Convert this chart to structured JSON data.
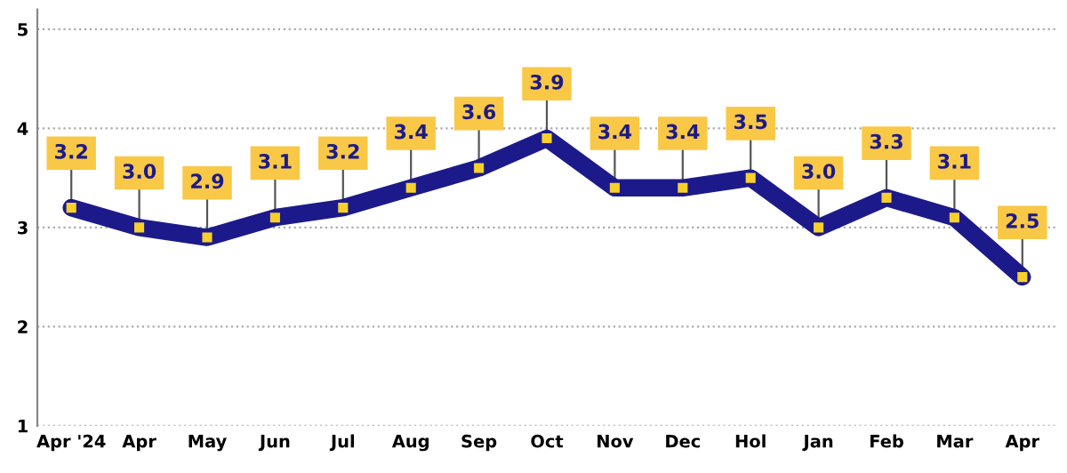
{
  "chart_data": {
    "type": "line",
    "categories": [
      "Apr '24",
      "Apr",
      "May",
      "Jun",
      "Jul",
      "Aug",
      "Sep",
      "Oct",
      "Nov",
      "Dec",
      "Hol",
      "Jan",
      "Feb",
      "Mar",
      "Apr"
    ],
    "series": [
      {
        "color": "#1c1a8a",
        "values": [
          3.2,
          3.0,
          2.9,
          3.1,
          3.2,
          3.4,
          3.6,
          3.9,
          3.4,
          3.4,
          3.5,
          3.0,
          3.3,
          3.1,
          2.5
        ],
        "value_labels": [
          "3.2",
          "3.0",
          "2.9",
          "3.1",
          "3.2",
          "3.4",
          "3.6",
          "3.9",
          "3.4",
          "3.4",
          "3.5",
          "3.0",
          "3.3",
          "3.1",
          "2.5"
        ]
      }
    ],
    "ylim": [
      1,
      5.2
    ],
    "yticks": [
      1,
      2,
      3,
      4,
      5
    ],
    "grid": "y",
    "marker": "square",
    "line_style": "solid"
  }
}
